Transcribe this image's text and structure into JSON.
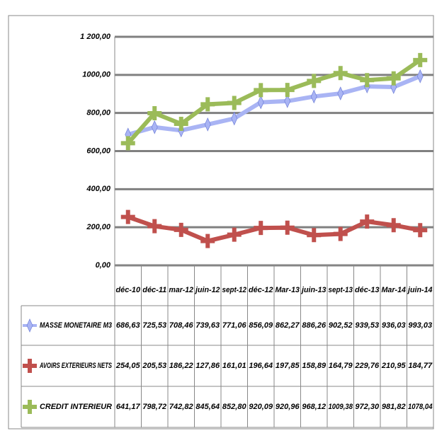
{
  "chart_data": {
    "type": "line",
    "categories": [
      "déc-10",
      "déc-11",
      "mar-12",
      "juin-12",
      "sept-12",
      "déc-12",
      "Mar-13",
      "juin-13",
      "sept-13",
      "déc-13",
      "Mar-14",
      "juin-14"
    ],
    "series": [
      {
        "name": "MASSE MONETAIRE M3",
        "color": "#a9b4f4",
        "marker": "diamond",
        "values": [
          686.63,
          725.53,
          708.46,
          739.63,
          771.06,
          856.09,
          862.27,
          886.26,
          902.52,
          939.53,
          936.03,
          993.03
        ],
        "value_labels": [
          "686,63",
          "725,53",
          "708,46",
          "739,63",
          "771,06",
          "856,09",
          "862,27",
          "886,26",
          "902,52",
          "939,53",
          "936,03",
          "993,03"
        ]
      },
      {
        "name": "AVOIRS EXTERIEURS  NETS",
        "color": "#c0504d",
        "marker": "plus",
        "values": [
          254.05,
          205.53,
          186.22,
          127.86,
          161.01,
          196.64,
          197.85,
          158.89,
          164.79,
          229.76,
          210.95,
          184.77
        ],
        "value_labels": [
          "254,05",
          "205,53",
          "186,22",
          "127,86",
          "161,01",
          "196,64",
          "197,85",
          "158,89",
          "164,79",
          "229,76",
          "210,95",
          "184,77"
        ]
      },
      {
        "name": "CREDIT INTERIEUR",
        "color": "#9bbb59",
        "marker": "plus",
        "values": [
          641.17,
          798.72,
          742.82,
          845.64,
          852.8,
          920.09,
          920.96,
          968.12,
          1009.38,
          972.3,
          981.82,
          1078.04
        ],
        "value_labels": [
          "641,17",
          "798,72",
          "742,82",
          "845,64",
          "852,80",
          "920,09",
          "920,96",
          "968,12",
          "1009,38",
          "972,30",
          "981,82",
          "1078,04"
        ]
      }
    ],
    "ylim": [
      0,
      1200
    ],
    "yticks": [
      {
        "value": 0,
        "label": "0,00"
      },
      {
        "value": 200,
        "label": "200,00"
      },
      {
        "value": 400,
        "label": "400,00"
      },
      {
        "value": 600,
        "label": "600,00"
      },
      {
        "value": 800,
        "label": "800,00"
      },
      {
        "value": 1000,
        "label": "1000,00"
      },
      {
        "value": 1200,
        "label": "1 200,00"
      }
    ],
    "grid": true
  }
}
